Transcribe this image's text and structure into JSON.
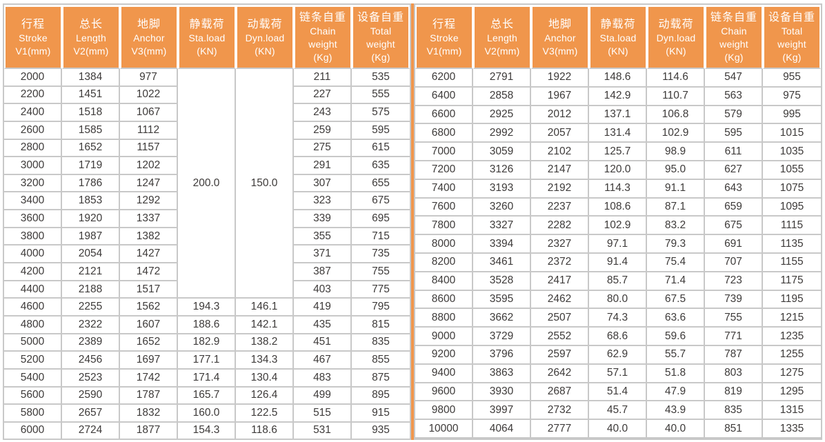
{
  "colors": {
    "header_bg": "#f0964c",
    "header_text": "#ffffff",
    "body_text": "#3d3a39",
    "grid_line": "#c8c8c8",
    "divider": "#f0964c",
    "background": "#ffffff"
  },
  "header_columns": [
    {
      "lines": [
        "行程",
        "Stroke",
        "V1(mm)"
      ]
    },
    {
      "lines": [
        "总长",
        "Length",
        "V2(mm)"
      ]
    },
    {
      "lines": [
        "地脚",
        "Anchor",
        "V3(mm)"
      ]
    },
    {
      "lines": [
        "静载荷",
        "Sta.load",
        "(KN)"
      ]
    },
    {
      "lines": [
        "动载荷",
        "Dyn.load",
        "(KN)"
      ]
    },
    {
      "lines": [
        "链条自重",
        "Chain",
        "weight",
        "(Kg)"
      ]
    },
    {
      "lines": [
        "设备自重",
        "Total",
        "weight",
        "(Kg)"
      ]
    }
  ],
  "left_table": {
    "merged": {
      "sta": "200.0",
      "dyn": "150.0",
      "rowspan": 13
    },
    "rows": [
      [
        "2000",
        "1384",
        "977",
        null,
        null,
        "211",
        "535"
      ],
      [
        "2200",
        "1451",
        "1022",
        null,
        null,
        "227",
        "555"
      ],
      [
        "2400",
        "1518",
        "1067",
        null,
        null,
        "243",
        "575"
      ],
      [
        "2600",
        "1585",
        "1112",
        null,
        null,
        "259",
        "595"
      ],
      [
        "2800",
        "1652",
        "1157",
        null,
        null,
        "275",
        "615"
      ],
      [
        "3000",
        "1719",
        "1202",
        null,
        null,
        "291",
        "635"
      ],
      [
        "3200",
        "1786",
        "1247",
        null,
        null,
        "307",
        "655"
      ],
      [
        "3400",
        "1853",
        "1292",
        null,
        null,
        "323",
        "675"
      ],
      [
        "3600",
        "1920",
        "1337",
        null,
        null,
        "339",
        "695"
      ],
      [
        "3800",
        "1987",
        "1382",
        null,
        null,
        "355",
        "715"
      ],
      [
        "4000",
        "2054",
        "1427",
        null,
        null,
        "371",
        "735"
      ],
      [
        "4200",
        "2121",
        "1472",
        null,
        null,
        "387",
        "755"
      ],
      [
        "4400",
        "2188",
        "1517",
        null,
        null,
        "403",
        "775"
      ],
      [
        "4600",
        "2255",
        "1562",
        "194.3",
        "146.1",
        "419",
        "795"
      ],
      [
        "4800",
        "2322",
        "1607",
        "188.6",
        "142.1",
        "435",
        "815"
      ],
      [
        "5000",
        "2389",
        "1652",
        "182.9",
        "138.2",
        "451",
        "835"
      ],
      [
        "5200",
        "2456",
        "1697",
        "177.1",
        "134.3",
        "467",
        "855"
      ],
      [
        "5400",
        "2523",
        "1742",
        "171.4",
        "130.4",
        "483",
        "875"
      ],
      [
        "5600",
        "2590",
        "1787",
        "165.7",
        "126.4",
        "499",
        "895"
      ],
      [
        "5800",
        "2657",
        "1832",
        "160.0",
        "122.5",
        "515",
        "915"
      ],
      [
        "6000",
        "2724",
        "1877",
        "154.3",
        "118.6",
        "531",
        "935"
      ]
    ]
  },
  "right_table": {
    "rows": [
      [
        "6200",
        "2791",
        "1922",
        "148.6",
        "114.6",
        "547",
        "955"
      ],
      [
        "6400",
        "2858",
        "1967",
        "142.9",
        "110.7",
        "563",
        "975"
      ],
      [
        "6600",
        "2925",
        "2012",
        "137.1",
        "106.8",
        "579",
        "995"
      ],
      [
        "6800",
        "2992",
        "2057",
        "131.4",
        "102.9",
        "595",
        "1015"
      ],
      [
        "7000",
        "3059",
        "2102",
        "125.7",
        "98.9",
        "611",
        "1035"
      ],
      [
        "7200",
        "3126",
        "2147",
        "120.0",
        "95.0",
        "627",
        "1055"
      ],
      [
        "7400",
        "3193",
        "2192",
        "114.3",
        "91.1",
        "643",
        "1075"
      ],
      [
        "7600",
        "3260",
        "2237",
        "108.6",
        "87.1",
        "659",
        "1095"
      ],
      [
        "7800",
        "3327",
        "2282",
        "102.9",
        "83.2",
        "675",
        "1115"
      ],
      [
        "8000",
        "3394",
        "2327",
        "97.1",
        "79.3",
        "691",
        "1135"
      ],
      [
        "8200",
        "3461",
        "2372",
        "91.4",
        "75.4",
        "707",
        "1155"
      ],
      [
        "8400",
        "3528",
        "2417",
        "85.7",
        "71.4",
        "723",
        "1175"
      ],
      [
        "8600",
        "3595",
        "2462",
        "80.0",
        "67.5",
        "739",
        "1195"
      ],
      [
        "8800",
        "3662",
        "2507",
        "74.3",
        "63.6",
        "755",
        "1215"
      ],
      [
        "9000",
        "3729",
        "2552",
        "68.6",
        "59.6",
        "771",
        "1235"
      ],
      [
        "9200",
        "3796",
        "2597",
        "62.9",
        "55.7",
        "787",
        "1255"
      ],
      [
        "9400",
        "3863",
        "2642",
        "57.1",
        "51.8",
        "803",
        "1275"
      ],
      [
        "9600",
        "3930",
        "2687",
        "51.4",
        "47.9",
        "819",
        "1295"
      ],
      [
        "9800",
        "3997",
        "2732",
        "45.7",
        "43.9",
        "835",
        "1315"
      ],
      [
        "10000",
        "4064",
        "2777",
        "40.0",
        "40.0",
        "851",
        "1335"
      ],
      [
        "",
        "",
        "",
        "",
        "",
        "",
        ""
      ]
    ]
  }
}
